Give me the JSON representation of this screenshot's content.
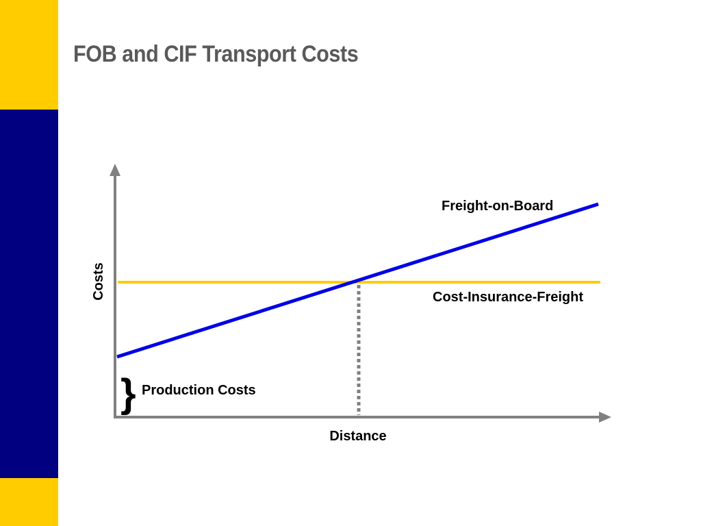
{
  "slide": {
    "title": "FOB and CIF Transport Costs"
  },
  "colors": {
    "accent_yellow": "#FFCC00",
    "accent_navy": "#000080",
    "title_gray": "#595959",
    "axis_gray": "#808080",
    "fob_line": "#0000E6",
    "cif_line": "#FFCC00",
    "guide_gray": "#808080"
  },
  "diagram": {
    "y_axis_label": "Costs",
    "x_axis_label": "Distance",
    "fob_label": "Freight-on-Board",
    "cif_label": "Cost-Insurance-Freight",
    "production_label": "Production Costs",
    "brace_glyph": "}"
  }
}
